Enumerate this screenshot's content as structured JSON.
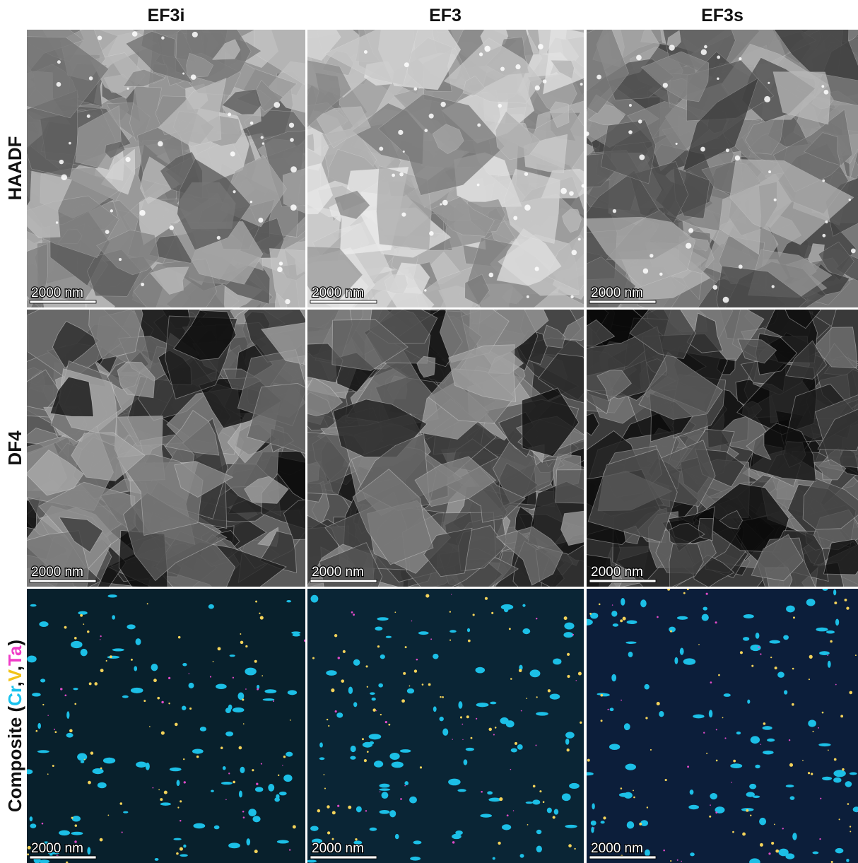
{
  "columns": [
    "EF3i",
    "EF3",
    "EF3s"
  ],
  "rows": [
    {
      "label": "HAADF"
    },
    {
      "label": "DF4"
    },
    {
      "label_parts": [
        "Composite (",
        "Cr",
        ",",
        "V",
        ",",
        "Ta",
        ")"
      ]
    }
  ],
  "scale_bars": [
    [
      "2000 nm",
      "2000 nm",
      "2000 nm"
    ],
    [
      "2000 nm",
      "2000 nm",
      "2000 nm"
    ],
    [
      "2000 nm",
      "2000 nm",
      "2000 nm"
    ]
  ]
}
